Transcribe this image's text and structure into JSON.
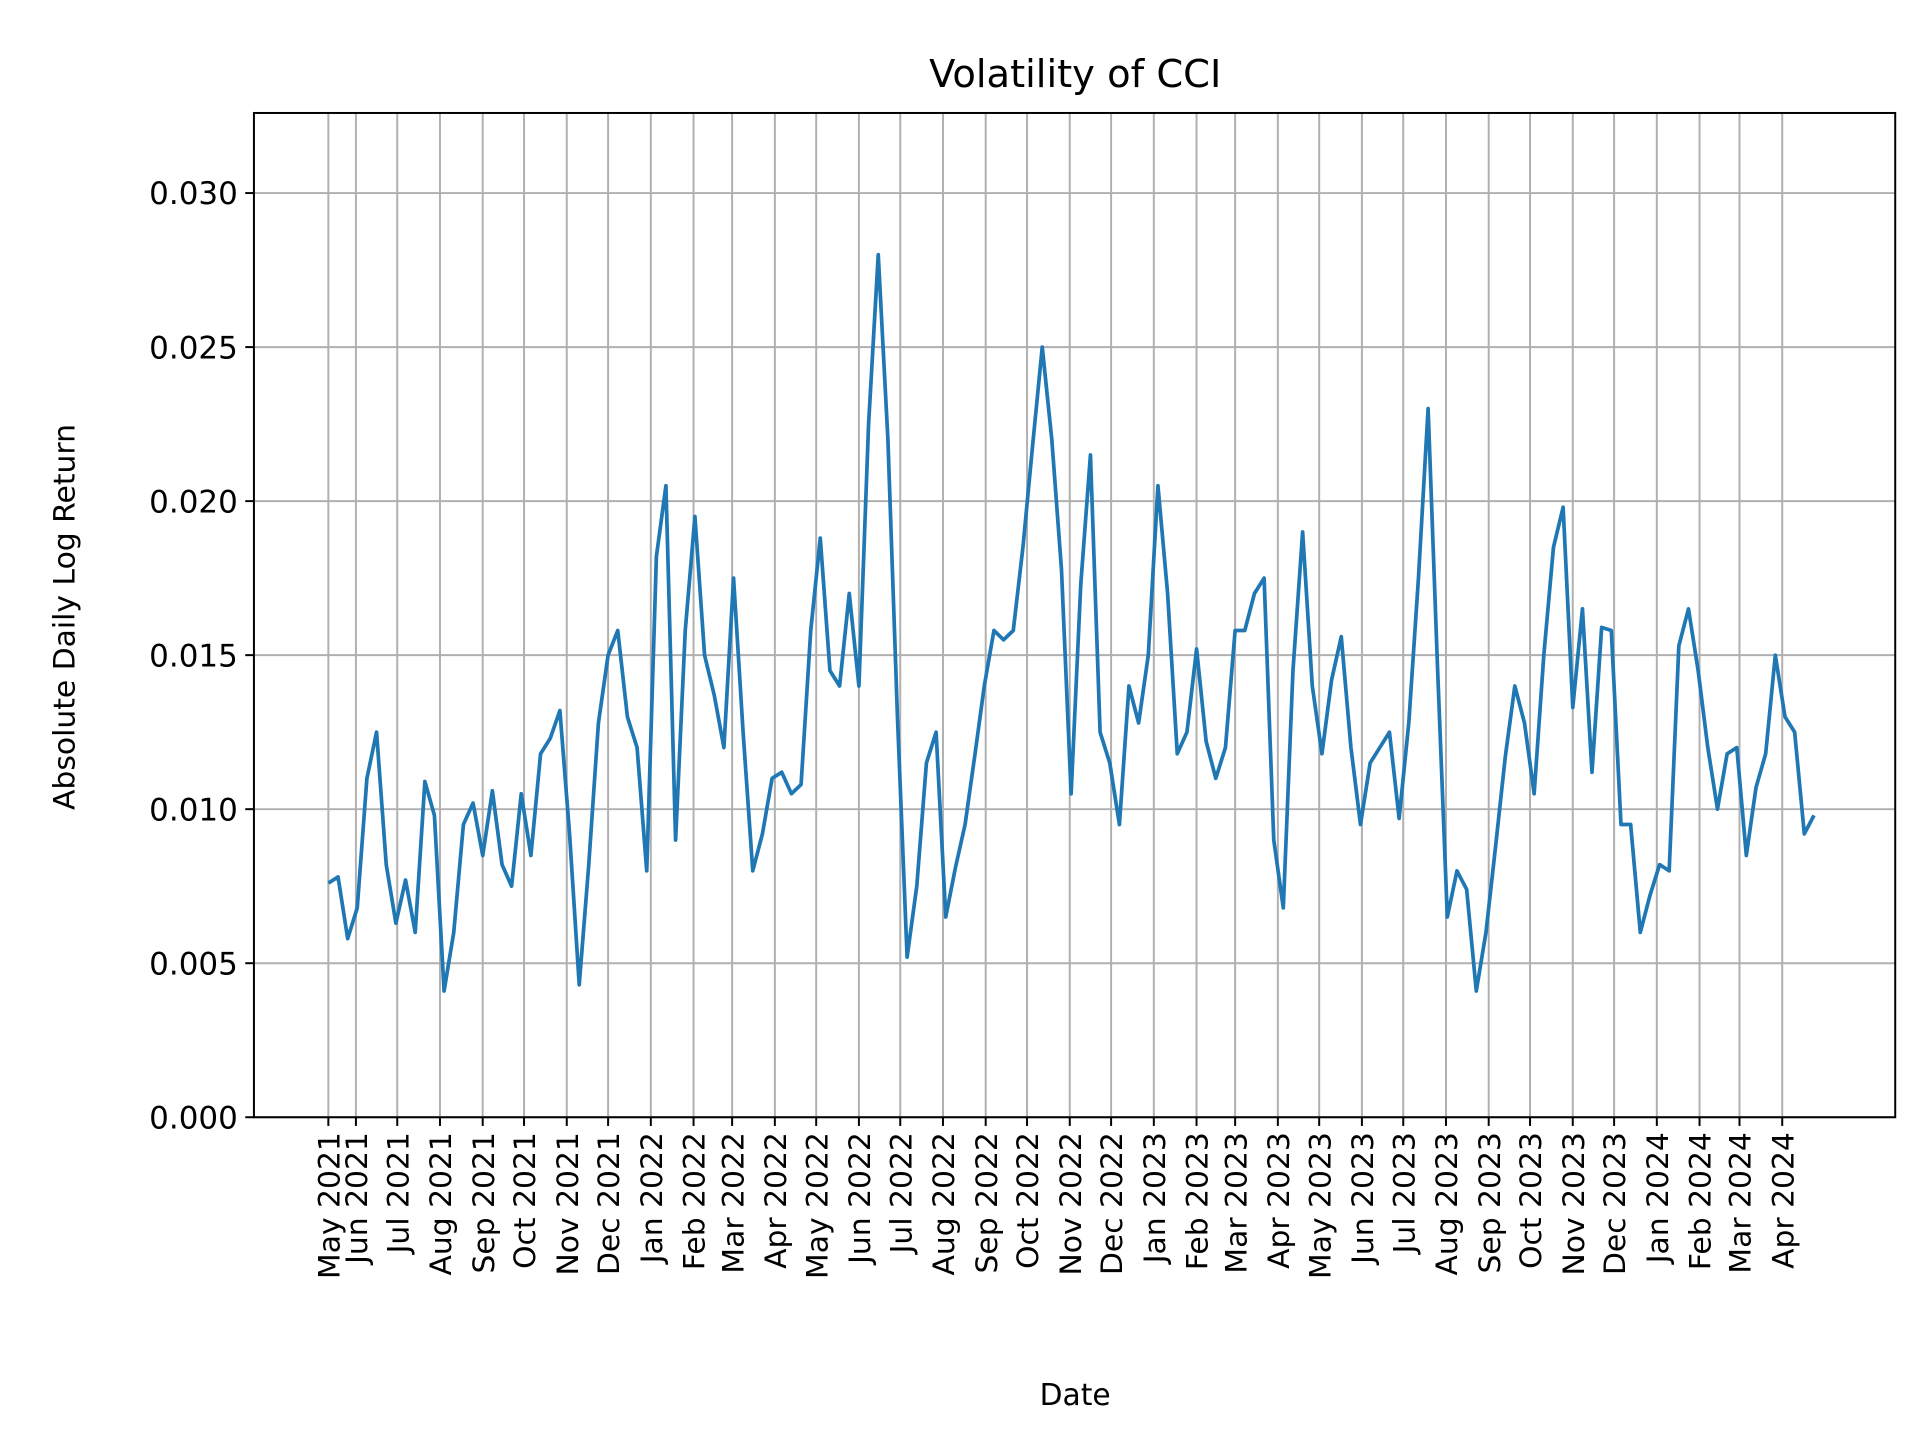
{
  "chart_data": {
    "type": "line",
    "title": "Volatility of CCI",
    "xlabel": "Date",
    "ylabel": "Absolute Daily Log Return",
    "ylim": [
      0,
      0.0326
    ],
    "grid": true,
    "line_color": "#1f77b4",
    "y_ticks": [
      "0.000",
      "0.005",
      "0.010",
      "0.015",
      "0.020",
      "0.025",
      "0.030"
    ],
    "x_ticks": [
      {
        "date": "2021-05-12",
        "label": "May 2021"
      },
      {
        "date": "2021-06-01",
        "label": "Jun 2021"
      },
      {
        "date": "2021-07-01",
        "label": "Jul 2021"
      },
      {
        "date": "2021-08-01",
        "label": "Aug 2021"
      },
      {
        "date": "2021-09-01",
        "label": "Sep 2021"
      },
      {
        "date": "2021-10-01",
        "label": "Oct 2021"
      },
      {
        "date": "2021-11-01",
        "label": "Nov 2021"
      },
      {
        "date": "2021-12-01",
        "label": "Dec 2021"
      },
      {
        "date": "2022-01-01",
        "label": "Jan 2022"
      },
      {
        "date": "2022-02-01",
        "label": "Feb 2022"
      },
      {
        "date": "2022-03-01",
        "label": "Mar 2022"
      },
      {
        "date": "2022-04-01",
        "label": "Apr 2022"
      },
      {
        "date": "2022-05-01",
        "label": "May 2022"
      },
      {
        "date": "2022-06-01",
        "label": "Jun 2022"
      },
      {
        "date": "2022-07-01",
        "label": "Jul 2022"
      },
      {
        "date": "2022-08-01",
        "label": "Aug 2022"
      },
      {
        "date": "2022-09-01",
        "label": "Sep 2022"
      },
      {
        "date": "2022-10-01",
        "label": "Oct 2022"
      },
      {
        "date": "2022-11-01",
        "label": "Nov 2022"
      },
      {
        "date": "2022-12-01",
        "label": "Dec 2022"
      },
      {
        "date": "2023-01-01",
        "label": "Jan 2023"
      },
      {
        "date": "2023-02-01",
        "label": "Feb 2023"
      },
      {
        "date": "2023-03-01",
        "label": "Mar 2023"
      },
      {
        "date": "2023-04-01",
        "label": "Apr 2023"
      },
      {
        "date": "2023-05-01",
        "label": "May 2023"
      },
      {
        "date": "2023-06-01",
        "label": "Jun 2023"
      },
      {
        "date": "2023-07-01",
        "label": "Jul 2023"
      },
      {
        "date": "2023-08-01",
        "label": "Aug 2023"
      },
      {
        "date": "2023-09-01",
        "label": "Sep 2023"
      },
      {
        "date": "2023-10-01",
        "label": "Oct 2023"
      },
      {
        "date": "2023-11-01",
        "label": "Nov 2023"
      },
      {
        "date": "2023-12-01",
        "label": "Dec 2023"
      },
      {
        "date": "2024-01-01",
        "label": "Jan 2024"
      },
      {
        "date": "2024-02-01",
        "label": "Feb 2024"
      },
      {
        "date": "2024-03-01",
        "label": "Mar 2024"
      },
      {
        "date": "2024-04-01",
        "label": "Apr 2024"
      }
    ],
    "xlim": [
      "2021-03-19",
      "2024-06-22"
    ],
    "x": [
      "2021-05-12",
      "2021-05-19",
      "2021-05-26",
      "2021-06-02",
      "2021-06-09",
      "2021-06-16",
      "2021-06-23",
      "2021-06-30",
      "2021-07-07",
      "2021-07-14",
      "2021-07-21",
      "2021-07-28",
      "2021-08-04",
      "2021-08-11",
      "2021-08-18",
      "2021-08-25",
      "2021-09-01",
      "2021-09-08",
      "2021-09-15",
      "2021-09-22",
      "2021-09-29",
      "2021-10-06",
      "2021-10-13",
      "2021-10-20",
      "2021-10-27",
      "2021-11-03",
      "2021-11-10",
      "2021-11-17",
      "2021-11-24",
      "2021-12-01",
      "2021-12-08",
      "2021-12-15",
      "2021-12-22",
      "2021-12-29",
      "2022-01-05",
      "2022-01-12",
      "2022-01-19",
      "2022-01-26",
      "2022-02-02",
      "2022-02-09",
      "2022-02-16",
      "2022-02-23",
      "2022-03-02",
      "2022-03-09",
      "2022-03-16",
      "2022-03-23",
      "2022-03-30",
      "2022-04-06",
      "2022-04-13",
      "2022-04-20",
      "2022-04-27",
      "2022-05-04",
      "2022-05-11",
      "2022-05-18",
      "2022-05-25",
      "2022-06-01",
      "2022-06-08",
      "2022-06-15",
      "2022-06-22",
      "2022-06-29",
      "2022-07-06",
      "2022-07-13",
      "2022-07-20",
      "2022-07-27",
      "2022-08-03",
      "2022-08-10",
      "2022-08-17",
      "2022-08-24",
      "2022-08-31",
      "2022-09-07",
      "2022-09-14",
      "2022-09-21",
      "2022-09-28",
      "2022-10-05",
      "2022-10-12",
      "2022-10-19",
      "2022-10-26",
      "2022-11-02",
      "2022-11-09",
      "2022-11-16",
      "2022-11-23",
      "2022-11-30",
      "2022-12-07",
      "2022-12-14",
      "2022-12-21",
      "2022-12-28",
      "2023-01-04",
      "2023-01-11",
      "2023-01-18",
      "2023-01-25",
      "2023-02-01",
      "2023-02-08",
      "2023-02-15",
      "2023-02-22",
      "2023-03-01",
      "2023-03-08",
      "2023-03-15",
      "2023-03-22",
      "2023-03-29",
      "2023-04-05",
      "2023-04-12",
      "2023-04-19",
      "2023-04-26",
      "2023-05-03",
      "2023-05-10",
      "2023-05-17",
      "2023-05-24",
      "2023-05-31",
      "2023-06-07",
      "2023-06-14",
      "2023-06-21",
      "2023-06-28",
      "2023-07-05",
      "2023-07-12",
      "2023-07-19",
      "2023-07-26",
      "2023-08-02",
      "2023-08-09",
      "2023-08-16",
      "2023-08-23",
      "2023-08-30",
      "2023-09-06",
      "2023-09-13",
      "2023-09-20",
      "2023-09-27",
      "2023-10-04",
      "2023-10-11",
      "2023-10-18",
      "2023-10-25",
      "2023-11-01",
      "2023-11-08",
      "2023-11-15",
      "2023-11-22",
      "2023-11-29",
      "2023-12-06",
      "2023-12-13",
      "2023-12-20",
      "2023-12-27",
      "2024-01-03",
      "2024-01-10",
      "2024-01-17",
      "2024-01-24",
      "2024-01-31",
      "2024-02-07",
      "2024-02-14",
      "2024-02-21",
      "2024-02-28",
      "2024-03-06",
      "2024-03-13",
      "2024-03-20",
      "2024-03-27",
      "2024-04-03",
      "2024-04-10",
      "2024-04-17",
      "2024-04-24"
    ],
    "y": [
      0.0076,
      0.0078,
      0.0058,
      0.0068,
      0.011,
      0.0125,
      0.0082,
      0.0063,
      0.0077,
      0.006,
      0.0109,
      0.0098,
      0.0041,
      0.006,
      0.0095,
      0.0102,
      0.0085,
      0.0106,
      0.0082,
      0.0075,
      0.0105,
      0.0085,
      0.0118,
      0.0123,
      0.0132,
      0.0092,
      0.0043,
      0.0082,
      0.0128,
      0.015,
      0.0158,
      0.013,
      0.012,
      0.008,
      0.0182,
      0.0205,
      0.009,
      0.0158,
      0.0195,
      0.015,
      0.0137,
      0.012,
      0.0175,
      0.0125,
      0.008,
      0.0092,
      0.011,
      0.0112,
      0.0105,
      0.0108,
      0.0158,
      0.0188,
      0.0145,
      0.014,
      0.017,
      0.014,
      0.0225,
      0.028,
      0.022,
      0.013,
      0.0052,
      0.0075,
      0.0115,
      0.0125,
      0.0065,
      0.0081,
      0.0095,
      0.0117,
      0.014,
      0.0158,
      0.0155,
      0.0158,
      0.0185,
      0.0218,
      0.025,
      0.022,
      0.0178,
      0.0105,
      0.0173,
      0.0215,
      0.0125,
      0.0115,
      0.0095,
      0.014,
      0.0128,
      0.015,
      0.0205,
      0.017,
      0.0118,
      0.0125,
      0.0152,
      0.0122,
      0.011,
      0.012,
      0.0158,
      0.0158,
      0.017,
      0.0175,
      0.009,
      0.0068,
      0.0145,
      0.019,
      0.014,
      0.0118,
      0.0142,
      0.0156,
      0.012,
      0.0095,
      0.0115,
      0.012,
      0.0125,
      0.0097,
      0.0128,
      0.0175,
      0.023,
      0.0145,
      0.0065,
      0.008,
      0.0074,
      0.0041,
      0.006,
      0.0088,
      0.0117,
      0.014,
      0.0128,
      0.0105,
      0.015,
      0.0185,
      0.0198,
      0.0133,
      0.0165,
      0.0112,
      0.0159,
      0.0158,
      0.0095,
      0.0095,
      0.006,
      0.0072,
      0.0082,
      0.008,
      0.0153,
      0.0165,
      0.0145,
      0.012,
      0.01,
      0.0118,
      0.012,
      0.0085,
      0.0107,
      0.0118,
      0.015,
      0.013,
      0.0125,
      0.0092,
      0.0098
    ]
  }
}
